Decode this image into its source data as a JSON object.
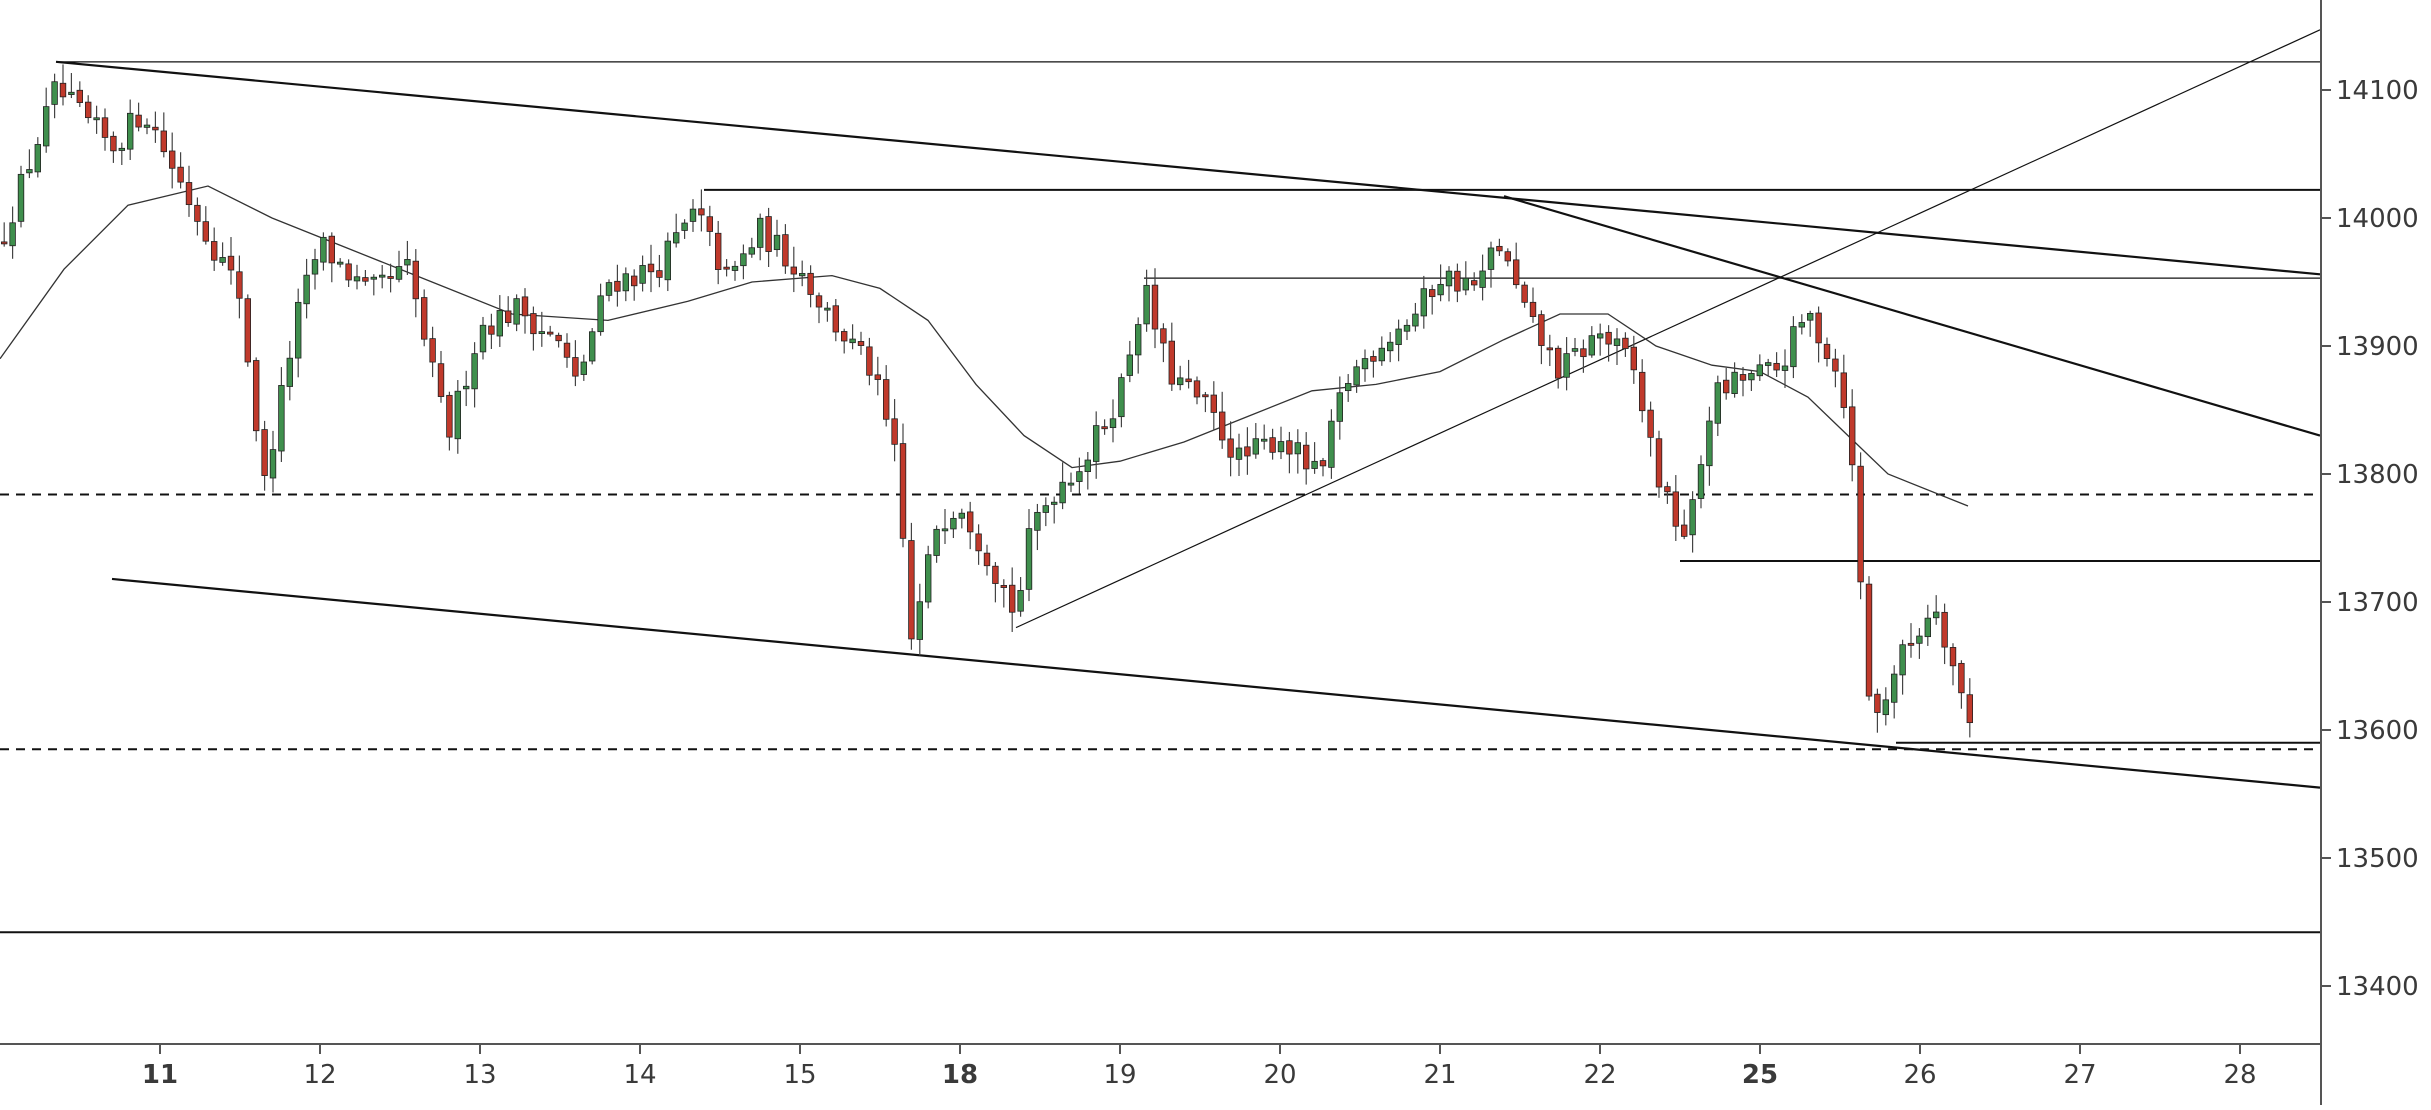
{
  "colors": {
    "up": "#3f8f4d",
    "down": "#c0392b",
    "wick": "#444444",
    "line": "#111111",
    "grid_text": "#3a3a3a",
    "background": "#ffffff"
  },
  "chart_data": {
    "type": "candlestick",
    "title": "",
    "xlabel": "",
    "ylabel": "",
    "ylim": [
      13325,
      14170
    ],
    "xlim": [
      10.0,
      28.5
    ],
    "y_ticks": [
      "14100",
      "14000",
      "13900",
      "13800",
      "13700",
      "13600",
      "13500",
      "13400"
    ],
    "x_ticks": [
      {
        "label": "11",
        "x": 11,
        "bold": true
      },
      {
        "label": "12",
        "x": 12,
        "bold": false
      },
      {
        "label": "13",
        "x": 13,
        "bold": false
      },
      {
        "label": "14",
        "x": 14,
        "bold": false
      },
      {
        "label": "15",
        "x": 15,
        "bold": false
      },
      {
        "label": "18",
        "x": 16,
        "bold": true
      },
      {
        "label": "19",
        "x": 17,
        "bold": false
      },
      {
        "label": "20",
        "x": 18,
        "bold": false
      },
      {
        "label": "21",
        "x": 19,
        "bold": false
      },
      {
        "label": "22",
        "x": 20,
        "bold": false
      },
      {
        "label": "25",
        "x": 21,
        "bold": true
      },
      {
        "label": "26",
        "x": 22,
        "bold": false
      },
      {
        "label": "27",
        "x": 23,
        "bold": false
      },
      {
        "label": "28",
        "x": 24,
        "bold": false
      }
    ],
    "price_path": [
      [
        10.0,
        13980
      ],
      [
        10.35,
        14100
      ],
      [
        10.7,
        14055
      ],
      [
        10.9,
        14085
      ],
      [
        11.2,
        14010
      ],
      [
        11.5,
        13940
      ],
      [
        11.65,
        13790
      ],
      [
        11.85,
        13920
      ],
      [
        12.0,
        13980
      ],
      [
        12.3,
        13940
      ],
      [
        12.55,
        13960
      ],
      [
        12.7,
        13880
      ],
      [
        12.8,
        13830
      ],
      [
        13.0,
        13915
      ],
      [
        13.25,
        13930
      ],
      [
        13.5,
        13900
      ],
      [
        13.6,
        13870
      ],
      [
        13.8,
        13950
      ],
      [
        14.1,
        13960
      ],
      [
        14.35,
        14005
      ],
      [
        14.55,
        13950
      ],
      [
        14.75,
        13990
      ],
      [
        15.0,
        13960
      ],
      [
        15.2,
        13920
      ],
      [
        15.45,
        13880
      ],
      [
        15.6,
        13810
      ],
      [
        15.7,
        13665
      ],
      [
        15.85,
        13760
      ],
      [
        16.0,
        13780
      ],
      [
        16.2,
        13730
      ],
      [
        16.35,
        13690
      ],
      [
        16.45,
        13760
      ],
      [
        16.6,
        13790
      ],
      [
        16.8,
        13815
      ],
      [
        17.0,
        13865
      ],
      [
        17.15,
        13945
      ],
      [
        17.3,
        13880
      ],
      [
        17.55,
        13850
      ],
      [
        17.75,
        13810
      ],
      [
        18.0,
        13830
      ],
      [
        18.25,
        13795
      ],
      [
        18.4,
        13870
      ],
      [
        18.6,
        13900
      ],
      [
        18.85,
        13925
      ],
      [
        19.0,
        13955
      ],
      [
        19.25,
        13945
      ],
      [
        19.35,
        13985
      ],
      [
        19.55,
        13920
      ],
      [
        19.75,
        13880
      ],
      [
        20.0,
        13910
      ],
      [
        20.2,
        13885
      ],
      [
        20.4,
        13780
      ],
      [
        20.55,
        13750
      ],
      [
        20.7,
        13860
      ],
      [
        20.9,
        13875
      ],
      [
        21.1,
        13880
      ],
      [
        21.3,
        13925
      ],
      [
        21.45,
        13890
      ],
      [
        21.55,
        13850
      ],
      [
        21.6,
        13760
      ],
      [
        21.7,
        13600
      ],
      [
        21.85,
        13650
      ],
      [
        21.95,
        13670
      ],
      [
        22.1,
        13700
      ],
      [
        22.25,
        13630
      ],
      [
        22.35,
        13590
      ]
    ],
    "moving_average": [
      [
        10.0,
        13890
      ],
      [
        10.4,
        13960
      ],
      [
        10.8,
        14010
      ],
      [
        11.3,
        14025
      ],
      [
        11.7,
        14000
      ],
      [
        12.2,
        13975
      ],
      [
        12.7,
        13950
      ],
      [
        13.2,
        13925
      ],
      [
        13.8,
        13920
      ],
      [
        14.3,
        13935
      ],
      [
        14.7,
        13950
      ],
      [
        15.2,
        13955
      ],
      [
        15.5,
        13945
      ],
      [
        15.8,
        13920
      ],
      [
        16.1,
        13870
      ],
      [
        16.4,
        13830
      ],
      [
        16.7,
        13805
      ],
      [
        17.0,
        13810
      ],
      [
        17.4,
        13825
      ],
      [
        17.8,
        13845
      ],
      [
        18.2,
        13865
      ],
      [
        18.6,
        13870
      ],
      [
        19.0,
        13880
      ],
      [
        19.4,
        13905
      ],
      [
        19.75,
        13925
      ],
      [
        20.05,
        13925
      ],
      [
        20.35,
        13900
      ],
      [
        20.7,
        13885
      ],
      [
        21.0,
        13880
      ],
      [
        21.3,
        13860
      ],
      [
        21.55,
        13830
      ],
      [
        21.8,
        13800
      ],
      [
        22.3,
        13775
      ]
    ],
    "horizontal_levels": [
      {
        "y": 14122,
        "x1": 10.35,
        "x2": 24.5,
        "weight": "thin"
      },
      {
        "y": 14022,
        "x1": 14.4,
        "x2": 24.5,
        "weight": "medium"
      },
      {
        "y": 13953,
        "x1": 17.15,
        "x2": 24.5,
        "weight": "thin"
      },
      {
        "y": 13732,
        "x1": 20.5,
        "x2": 24.5,
        "weight": "medium"
      },
      {
        "y": 13590,
        "x1": 21.85,
        "x2": 24.5,
        "weight": "medium"
      },
      {
        "y": 13442,
        "x1": 10.0,
        "x2": 24.5,
        "weight": "medium"
      }
    ],
    "dashed_levels": [
      13784,
      13585
    ],
    "trendlines": [
      {
        "points": [
          [
            10.35,
            14122
          ],
          [
            24.5,
            13956
          ]
        ],
        "weight": "medium"
      },
      {
        "points": [
          [
            19.4,
            14017
          ],
          [
            24.5,
            13830
          ]
        ],
        "weight": "medium"
      },
      {
        "points": [
          [
            10.7,
            13718
          ],
          [
            24.5,
            13555
          ]
        ],
        "weight": "medium"
      },
      {
        "points": [
          [
            16.35,
            13680
          ],
          [
            24.5,
            14147
          ]
        ],
        "weight": "thin"
      }
    ]
  }
}
